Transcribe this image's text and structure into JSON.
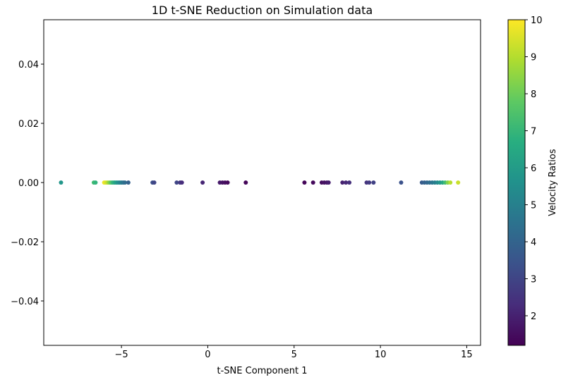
{
  "chart_data": {
    "type": "scatter",
    "title": "1D t-SNE Reduction on Simulation data",
    "xlabel": "t-SNE Component 1",
    "ylabel": "",
    "xlim": [
      -9.5,
      15.8
    ],
    "ylim": [
      -0.055,
      0.055
    ],
    "xticks": [
      -5,
      0,
      5,
      10,
      15
    ],
    "xtick_labels": [
      "−5",
      "0",
      "5",
      "10",
      "15"
    ],
    "yticks": [
      0.04,
      0.02,
      0.0,
      -0.02,
      -0.04
    ],
    "ytick_labels": [
      "0.04",
      "0.02",
      "0.00",
      "−0.02",
      "−0.04"
    ],
    "grid": false,
    "colormap": "viridis",
    "colorbar": {
      "label": "Velocity Ratios",
      "min": 1.2,
      "max": 10,
      "ticks": [
        2,
        3,
        4,
        5,
        6,
        7,
        8,
        9,
        10
      ],
      "tick_labels": [
        "2",
        "3",
        "4",
        "5",
        "6",
        "7",
        "8",
        "9",
        "10"
      ]
    },
    "points": [
      {
        "x": -8.5,
        "y": 0,
        "c": 5.8
      },
      {
        "x": -6.6,
        "y": 0,
        "c": 7.2
      },
      {
        "x": -6.5,
        "y": 0,
        "c": 6.9
      },
      {
        "x": -6.0,
        "y": 0,
        "c": 9.8
      },
      {
        "x": -5.9,
        "y": 0,
        "c": 9.5
      },
      {
        "x": -5.8,
        "y": 0,
        "c": 9.0
      },
      {
        "x": -5.7,
        "y": 0,
        "c": 8.3
      },
      {
        "x": -5.6,
        "y": 0,
        "c": 7.6
      },
      {
        "x": -5.5,
        "y": 0,
        "c": 7.0
      },
      {
        "x": -5.4,
        "y": 0,
        "c": 6.5
      },
      {
        "x": -5.3,
        "y": 0,
        "c": 6.0
      },
      {
        "x": -5.2,
        "y": 0,
        "c": 5.6
      },
      {
        "x": -5.1,
        "y": 0,
        "c": 5.2
      },
      {
        "x": -5.0,
        "y": 0,
        "c": 4.9
      },
      {
        "x": -4.9,
        "y": 0,
        "c": 4.6
      },
      {
        "x": -4.8,
        "y": 0,
        "c": 4.3
      },
      {
        "x": -4.6,
        "y": 0,
        "c": 3.9
      },
      {
        "x": -3.2,
        "y": 0,
        "c": 3.3
      },
      {
        "x": -3.1,
        "y": 0,
        "c": 3.0
      },
      {
        "x": -1.8,
        "y": 0,
        "c": 3.0
      },
      {
        "x": -1.6,
        "y": 0,
        "c": 2.7
      },
      {
        "x": -1.5,
        "y": 0,
        "c": 2.3
      },
      {
        "x": -0.3,
        "y": 0,
        "c": 2.1
      },
      {
        "x": 0.7,
        "y": 0,
        "c": 1.8
      },
      {
        "x": 0.85,
        "y": 0,
        "c": 1.6
      },
      {
        "x": 1.0,
        "y": 0,
        "c": 1.5
      },
      {
        "x": 1.15,
        "y": 0,
        "c": 1.4
      },
      {
        "x": 2.2,
        "y": 0,
        "c": 1.3
      },
      {
        "x": 5.6,
        "y": 0,
        "c": 1.3
      },
      {
        "x": 6.1,
        "y": 0,
        "c": 1.4
      },
      {
        "x": 6.6,
        "y": 0,
        "c": 1.5
      },
      {
        "x": 6.75,
        "y": 0,
        "c": 1.6
      },
      {
        "x": 6.9,
        "y": 0,
        "c": 1.7
      },
      {
        "x": 7.0,
        "y": 0,
        "c": 1.9
      },
      {
        "x": 7.8,
        "y": 0,
        "c": 2.0
      },
      {
        "x": 8.0,
        "y": 0,
        "c": 2.2
      },
      {
        "x": 8.2,
        "y": 0,
        "c": 2.4
      },
      {
        "x": 9.2,
        "y": 0,
        "c": 2.5
      },
      {
        "x": 9.35,
        "y": 0,
        "c": 2.7
      },
      {
        "x": 9.6,
        "y": 0,
        "c": 2.9
      },
      {
        "x": 11.2,
        "y": 0,
        "c": 3.4
      },
      {
        "x": 12.4,
        "y": 0,
        "c": 3.7
      },
      {
        "x": 12.55,
        "y": 0,
        "c": 3.9
      },
      {
        "x": 12.7,
        "y": 0,
        "c": 4.1
      },
      {
        "x": 12.85,
        "y": 0,
        "c": 4.3
      },
      {
        "x": 13.0,
        "y": 0,
        "c": 4.6
      },
      {
        "x": 13.15,
        "y": 0,
        "c": 4.9
      },
      {
        "x": 13.3,
        "y": 0,
        "c": 5.3
      },
      {
        "x": 13.45,
        "y": 0,
        "c": 5.8
      },
      {
        "x": 13.6,
        "y": 0,
        "c": 6.4
      },
      {
        "x": 13.75,
        "y": 0,
        "c": 7.2
      },
      {
        "x": 13.9,
        "y": 0,
        "c": 8.3
      },
      {
        "x": 14.05,
        "y": 0,
        "c": 9.0
      },
      {
        "x": 14.5,
        "y": 0,
        "c": 9.3
      }
    ]
  }
}
